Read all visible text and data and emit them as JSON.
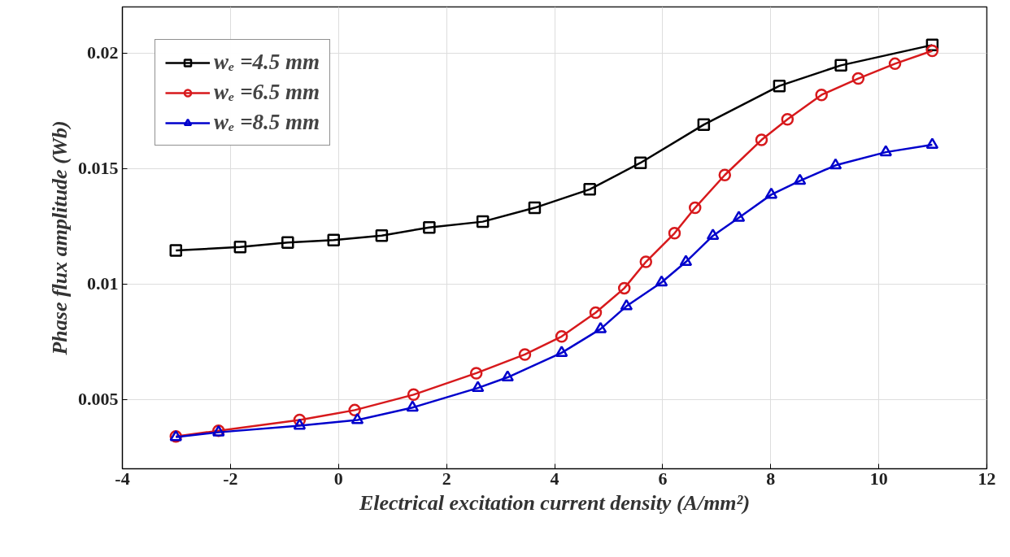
{
  "chart_data": {
    "type": "line",
    "xlabel": "Electrical excitation current density (A/mm²)",
    "ylabel": "Phase flux amplitude (Wb)",
    "xlim": [
      -4,
      12
    ],
    "xticks": [
      -4,
      -2,
      0,
      2,
      4,
      6,
      8,
      10,
      12
    ],
    "ylim": [
      0.002,
      0.022
    ],
    "yticks": [
      0.005,
      0.01,
      0.015,
      0.02
    ],
    "grid": true,
    "legend": "top left",
    "line_style": "solid",
    "series": [
      {
        "name": "wₑ =4.5 mm",
        "color": "#000000",
        "marker": "square",
        "x": [
          -3.01,
          -1.82,
          -0.94,
          -0.09,
          0.8,
          1.68,
          2.67,
          3.63,
          4.65,
          5.59,
          6.76,
          8.16,
          9.3,
          10.99
        ],
        "values": [
          0.01145,
          0.0116,
          0.0118,
          0.0119,
          0.0121,
          0.01245,
          0.0127,
          0.0133,
          0.0141,
          0.01525,
          0.0169,
          0.01858,
          0.01947,
          0.02035
        ]
      },
      {
        "name": "wₑ =6.5 mm",
        "color": "#d7191c",
        "marker": "circle",
        "x": [
          -3.01,
          -2.22,
          -0.72,
          0.3,
          1.39,
          2.55,
          3.45,
          4.13,
          4.76,
          5.29,
          5.69,
          6.22,
          6.6,
          7.15,
          7.83,
          8.31,
          8.94,
          9.62,
          10.3,
          10.99
        ],
        "values": [
          0.0034,
          0.00365,
          0.00411,
          0.00454,
          0.00521,
          0.00614,
          0.00695,
          0.00773,
          0.00876,
          0.00982,
          0.01096,
          0.0122,
          0.0133,
          0.01472,
          0.01624,
          0.01713,
          0.01819,
          0.0189,
          0.01954,
          0.0201
        ]
      },
      {
        "name": "wₑ =8.5 mm",
        "color": "#0000cc",
        "marker": "triangle",
        "x": [
          -3.01,
          -2.22,
          -0.72,
          0.35,
          1.37,
          2.58,
          3.13,
          4.13,
          4.85,
          5.33,
          5.98,
          6.43,
          6.93,
          7.41,
          8.01,
          8.54,
          9.2,
          10.13,
          10.99
        ],
        "values": [
          0.00337,
          0.00358,
          0.00387,
          0.00411,
          0.00465,
          0.0055,
          0.00596,
          0.00702,
          0.00805,
          0.00904,
          0.01007,
          0.01096,
          0.01209,
          0.01287,
          0.01387,
          0.01447,
          0.01514,
          0.01571,
          0.01603
        ]
      }
    ]
  }
}
